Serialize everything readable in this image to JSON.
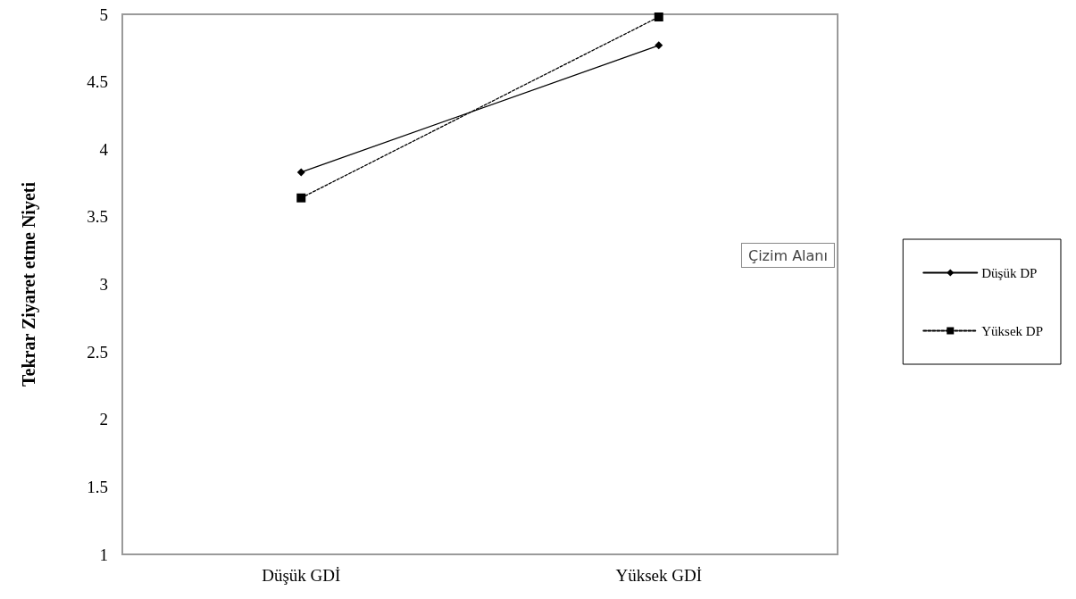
{
  "chart_data": {
    "type": "line",
    "ylabel": "Tekrar Ziyaret etme Niyeti",
    "categories": [
      "Düşük GDİ",
      "Yüksek GDİ"
    ],
    "series": [
      {
        "name": "Düşük DP",
        "color": "#000000",
        "values": [
          3.83,
          4.77
        ],
        "marker": "diamond",
        "line_style": "solid"
      },
      {
        "name": "Yüksek DP",
        "color": "#000000",
        "values": [
          3.64,
          4.98
        ],
        "marker": "square",
        "line_style": "dashed"
      }
    ],
    "ylim": [
      1,
      5
    ],
    "yticks": [
      1,
      1.5,
      2,
      2.5,
      3,
      3.5,
      4,
      4.5,
      5
    ],
    "grid": false,
    "legend": "right",
    "annotations": [
      "Çizim Alanı"
    ]
  }
}
